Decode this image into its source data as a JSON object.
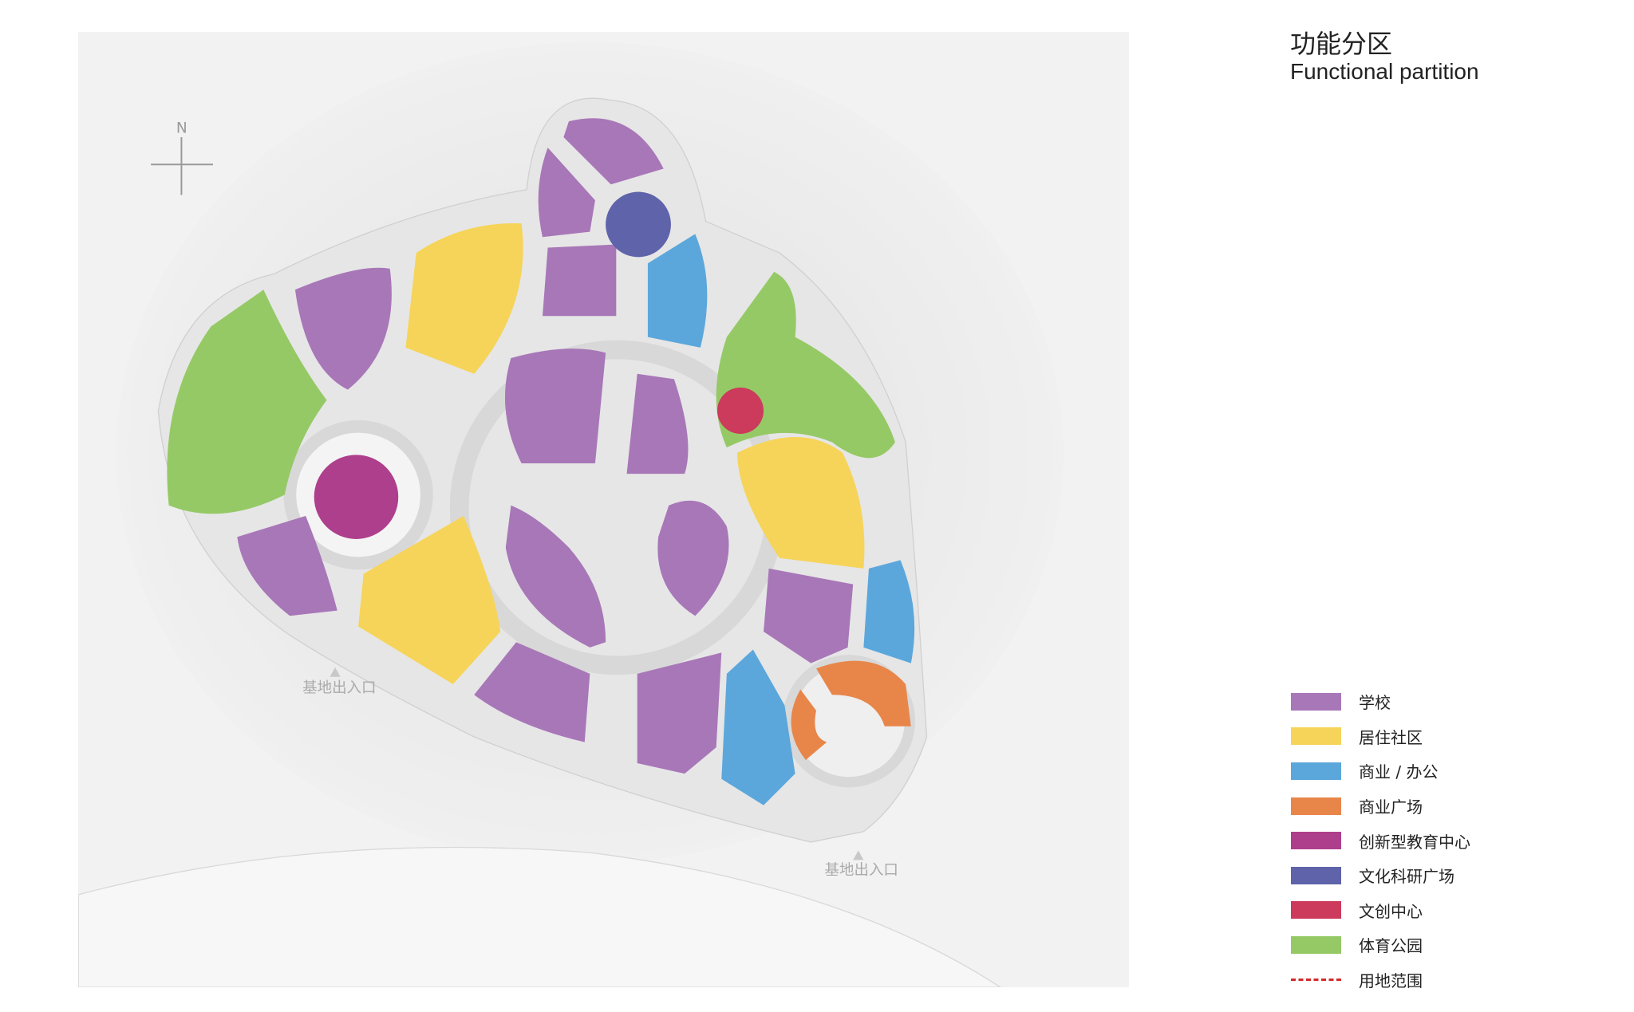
{
  "title": {
    "cn": "功能分区",
    "en": "Functional partition"
  },
  "north_label": "N",
  "entrances": [
    "基地出入口",
    "基地出入口"
  ],
  "legend": [
    {
      "label": "学校",
      "color": "#a877b8"
    },
    {
      "label": "居住社区",
      "color": "#f6d45a"
    },
    {
      "label": "商业 / 办公",
      "color": "#5ba7dc"
    },
    {
      "label": "商业广场",
      "color": "#e8864a"
    },
    {
      "label": "创新型教育中心",
      "color": "#ae3f8c"
    },
    {
      "label": "文化科研广场",
      "color": "#5e63aa"
    },
    {
      "label": "文创中心",
      "color": "#cc3a5c"
    },
    {
      "label": "体育公园",
      "color": "#95c966"
    },
    {
      "label": "用地范围",
      "color": "#d42a2a",
      "style": "dash-dot"
    }
  ]
}
